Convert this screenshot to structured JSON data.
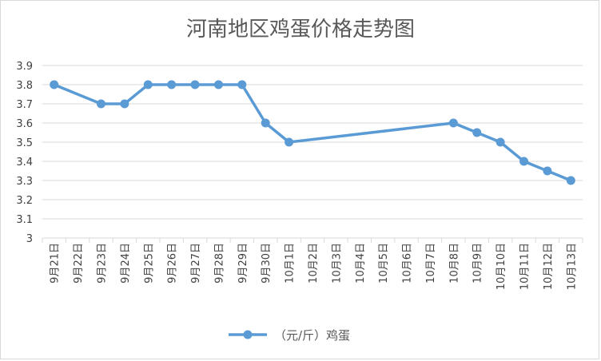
{
  "chart_data": {
    "type": "line",
    "title": "河南地区鸡蛋价格走势图",
    "categories": [
      "9月21日",
      "9月22日",
      "9月23日",
      "9月24日",
      "9月25日",
      "9月26日",
      "9月27日",
      "9月28日",
      "9月29日",
      "9月30日",
      "10月1日",
      "10月2日",
      "10月3日",
      "10月4日",
      "10月5日",
      "10月6日",
      "10月7日",
      "10月8日",
      "10月9日",
      "10月10日",
      "10月11日",
      "10月12日",
      "10月13日"
    ],
    "series": [
      {
        "name": "（元/斤）鸡蛋",
        "color": "#5b9bd5",
        "values": [
          3.8,
          null,
          3.7,
          3.7,
          3.8,
          3.8,
          3.8,
          3.8,
          3.8,
          3.6,
          3.5,
          null,
          null,
          null,
          null,
          null,
          null,
          3.6,
          3.55,
          3.5,
          3.4,
          3.35,
          3.3
        ]
      }
    ],
    "ylim": [
      3,
      3.9
    ],
    "yticks": [
      "3",
      "3.1",
      "3.2",
      "3.3",
      "3.4",
      "3.5",
      "3.6",
      "3.7",
      "3.8",
      "3.9"
    ],
    "ytick_values": [
      3,
      3.1,
      3.2,
      3.3,
      3.4,
      3.5,
      3.6,
      3.7,
      3.8,
      3.9
    ],
    "grid": true,
    "legend": "bottom",
    "connect_gaps": true,
    "gridline_color": "#d9d9d9"
  }
}
